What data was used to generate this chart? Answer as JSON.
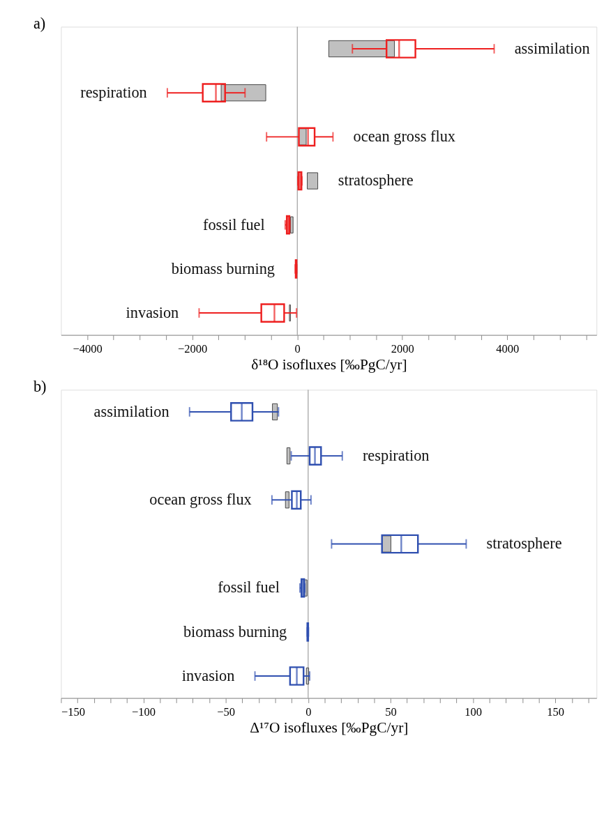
{
  "chart_data": [
    {
      "type": "box",
      "orientation": "horizontal",
      "annotations": [
        "a)"
      ],
      "xlabel": "δ¹⁸O isofluxes [‰PgC/yr]",
      "categories": [
        "assimilation",
        "respiration",
        "ocean gross flux",
        "stratosphere",
        "fossil fuel",
        "biomass burning",
        "invasion"
      ],
      "xlim": [
        -4500,
        5700
      ],
      "xticks": [
        -4000,
        {
          "value": -3500,
          "label": null
        },
        {
          "value": -3000,
          "label": null
        },
        {
          "value": -2500,
          "label": null
        },
        -2000,
        {
          "value": -1500,
          "label": null
        },
        {
          "value": -1000,
          "label": null
        },
        {
          "value": -500,
          "label": null
        },
        0,
        {
          "value": 500,
          "label": null
        },
        {
          "value": 1000,
          "label": null
        },
        {
          "value": 1500,
          "label": null
        },
        2000,
        {
          "value": 2500,
          "label": null
        },
        {
          "value": 3000,
          "label": null
        },
        {
          "value": 3500,
          "label": null
        },
        4000,
        {
          "value": 4500,
          "label": null
        },
        {
          "value": 5000,
          "label": null
        },
        {
          "value": 5500,
          "label": null
        }
      ],
      "tick_labels": "x",
      "grid": false,
      "ref_lines": [
        {
          "axis": "x",
          "value": 0,
          "color": "#888888"
        }
      ],
      "series": [
        {
          "type": "bar",
          "color": "#c0c0c0",
          "base": [
            600,
            -1450,
            30,
            190,
            -130,
            null,
            -150
          ],
          "values": [
            1250,
            850,
            140,
            200,
            50,
            null,
            20
          ]
        },
        {
          "type": "box",
          "color": "#ee2020",
          "boxes": [
            {
              "low": 1050,
              "q1": 1700,
              "median": 1940,
              "q3": 2250,
              "high": 3750
            },
            {
              "low": -2475,
              "q1": -1800,
              "median": -1550,
              "q3": -1375,
              "high": -995
            },
            {
              "low": -585,
              "q1": 30,
              "median": 205,
              "q3": 330,
              "high": 680
            },
            {
              "low": 10,
              "q1": 20,
              "median": 50,
              "q3": 80,
              "high": 90
            },
            {
              "low": -230,
              "q1": -200,
              "median": -175,
              "q3": -150,
              "high": -140
            },
            {
              "low": -40,
              "q1": -30,
              "median": -20,
              "q3": -15,
              "high": -10
            },
            {
              "low": -1870,
              "q1": -685,
              "median": -435,
              "q3": -250,
              "high": -15
            }
          ]
        }
      ]
    },
    {
      "type": "box",
      "orientation": "horizontal",
      "annotations": [
        "b)"
      ],
      "xlabel": "Δ¹⁷O isofluxes [‰PgC/yr]",
      "categories": [
        "assimilation",
        "respiration",
        "ocean gross flux",
        "stratosphere",
        "fossil fuel",
        "biomass burning",
        "invasion"
      ],
      "xlim": [
        -150,
        175
      ],
      "xticks": [
        -150,
        {
          "value": -140,
          "label": null
        },
        {
          "value": -130,
          "label": null
        },
        {
          "value": -120,
          "label": null
        },
        {
          "value": -110,
          "label": null
        },
        -100,
        {
          "value": -90,
          "label": null
        },
        {
          "value": -80,
          "label": null
        },
        {
          "value": -70,
          "label": null
        },
        {
          "value": -60,
          "label": null
        },
        -50,
        {
          "value": -40,
          "label": null
        },
        {
          "value": -30,
          "label": null
        },
        {
          "value": -20,
          "label": null
        },
        {
          "value": -10,
          "label": null
        },
        0,
        {
          "value": 10,
          "label": null
        },
        {
          "value": 20,
          "label": null
        },
        {
          "value": 30,
          "label": null
        },
        {
          "value": 40,
          "label": null
        },
        50,
        {
          "value": 60,
          "label": null
        },
        {
          "value": 70,
          "label": null
        },
        {
          "value": 80,
          "label": null
        },
        {
          "value": 90,
          "label": null
        },
        100,
        {
          "value": 110,
          "label": null
        },
        {
          "value": 120,
          "label": null
        },
        {
          "value": 130,
          "label": null
        },
        {
          "value": 140,
          "label": null
        },
        150,
        {
          "value": 160,
          "label": null
        },
        {
          "value": 170,
          "label": null
        }
      ],
      "tick_labels": "x",
      "grid": false,
      "ref_lines": [
        {
          "axis": "x",
          "value": 0,
          "color": "#888888"
        }
      ],
      "series": [
        {
          "type": "bar",
          "color": "#c0c0c0",
          "base": [
            -21.7,
            -12.9,
            -13.8,
            44.8,
            -2.4,
            null,
            -1.1
          ],
          "values": [
            3,
            1.9,
            2.2,
            5.4,
            1.7,
            null,
            1.4
          ]
        },
        {
          "type": "box",
          "color": "#3050b0",
          "boxes": [
            {
              "low": -72,
              "q1": -46.8,
              "median": -40.3,
              "q3": -33.8,
              "high": -18
            },
            {
              "low": -10.3,
              "q1": 0.9,
              "median": 4.1,
              "q3": 7.8,
              "high": 20.7
            },
            {
              "low": -22,
              "q1": -9.9,
              "median": -6.9,
              "q3": -4.5,
              "high": 1.7
            },
            {
              "low": 14.2,
              "q1": 44.8,
              "median": 56.5,
              "q3": 66.6,
              "high": 95.9
            },
            {
              "low": -5,
              "q1": -4.1,
              "median": -3.3,
              "q3": -2.4,
              "high": -2
            },
            {
              "low": -0.6,
              "q1": -0.5,
              "median": -0.2,
              "q3": 0,
              "high": 0.2
            },
            {
              "low": -32.3,
              "q1": -11,
              "median": -6.9,
              "q3": -2.8,
              "high": 0.9
            }
          ]
        }
      ]
    }
  ]
}
